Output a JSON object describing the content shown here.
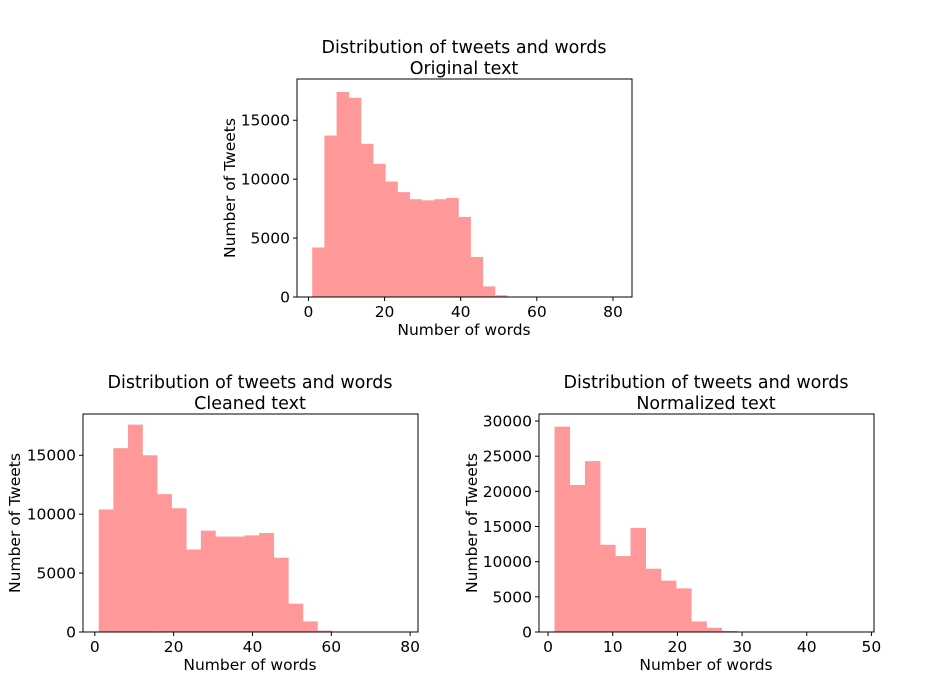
{
  "chart_data": [
    {
      "type": "bar",
      "title": "Distribution of tweets and words",
      "subtitle": "Original text",
      "xlabel": "Number of words",
      "ylabel": "Number of Tweets",
      "bin_edges": [
        1,
        4.2,
        7.4,
        10.6,
        13.8,
        17,
        20.2,
        23.4,
        26.6,
        29.8,
        33,
        36.2,
        39.4,
        42.6,
        45.8,
        49,
        52.2,
        55.4,
        58.6,
        61.8,
        65
      ],
      "values": [
        4200,
        13700,
        17400,
        16900,
        13000,
        11300,
        9800,
        8900,
        8300,
        8200,
        8300,
        8400,
        6800,
        3400,
        900,
        150,
        40,
        10,
        5,
        2
      ],
      "xlim": [
        -3,
        85
      ],
      "ylim": [
        0,
        18500
      ],
      "xticks": [
        "0",
        "20",
        "40",
        "60",
        "80"
      ],
      "yticks": [
        "0",
        "5000",
        "10000",
        "15000"
      ],
      "grid": false,
      "bar_color": "#ff9999"
    },
    {
      "type": "bar",
      "title": "Distribution of tweets and words",
      "subtitle": "Cleaned text",
      "xlabel": "Number of words",
      "ylabel": "Number of Tweets",
      "bin_edges": [
        1,
        4.7,
        8.4,
        12.1,
        15.8,
        19.5,
        23.2,
        26.9,
        30.6,
        34.3,
        38,
        41.7,
        45.4,
        49.1,
        52.8,
        56.5,
        60.2,
        63.9,
        67.6,
        71.3,
        75
      ],
      "values": [
        10400,
        15600,
        17600,
        15000,
        11700,
        10500,
        7000,
        8600,
        8100,
        8100,
        8200,
        8400,
        6300,
        2400,
        900,
        120,
        30,
        10,
        5,
        2
      ],
      "xlim": [
        -3,
        82
      ],
      "ylim": [
        0,
        18500
      ],
      "xticks": [
        "0",
        "20",
        "40",
        "60",
        "80"
      ],
      "yticks": [
        "0",
        "5000",
        "10000",
        "15000"
      ],
      "grid": false,
      "bar_color": "#ff9999"
    },
    {
      "type": "bar",
      "title": "Distribution of tweets and words",
      "subtitle": "Normalized text",
      "xlabel": "Number of words",
      "ylabel": "Number of Tweets",
      "bin_edges": [
        1,
        3.35,
        5.7,
        8.05,
        10.4,
        12.75,
        15.1,
        17.45,
        19.8,
        22.15,
        24.5,
        26.85,
        29.2,
        31.55,
        33.9,
        36.25,
        38.6,
        40.95,
        43.3,
        45.65,
        48
      ],
      "values": [
        29200,
        20900,
        24300,
        12400,
        10800,
        14800,
        9000,
        7300,
        6200,
        1500,
        600,
        150,
        50,
        20,
        10,
        5,
        3,
        2,
        1,
        1
      ],
      "xlim": [
        -1.4,
        50.4
      ],
      "ylim": [
        0,
        31000
      ],
      "xticks": [
        "0",
        "10",
        "20",
        "30",
        "40",
        "50"
      ],
      "yticks": [
        "0",
        "5000",
        "10000",
        "15000",
        "20000",
        "25000",
        "30000"
      ],
      "grid": false,
      "bar_color": "#ff9999"
    }
  ]
}
